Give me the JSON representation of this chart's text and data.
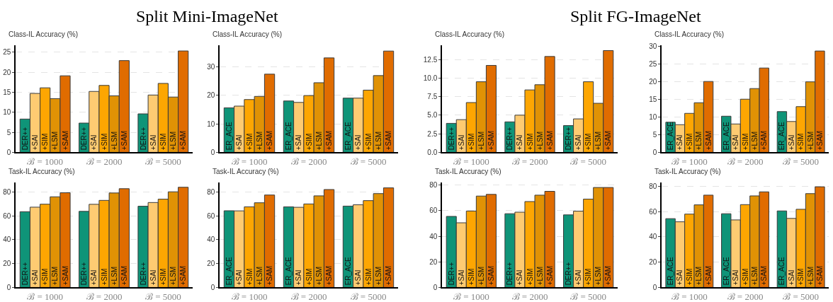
{
  "chart_data": [
    {
      "type": "bar",
      "title": "Split Mini-ImageNet",
      "ylabel": "Class-IL Accuracy (%)",
      "categories": [
        "ℬ = 1000",
        "ℬ = 2000",
        "ℬ = 5000"
      ],
      "ylim": [
        0,
        26.7
      ],
      "yticks": [
        0,
        5,
        10,
        15,
        20,
        25
      ],
      "grid": "y",
      "series": [
        {
          "name": "DER++",
          "color": "#0f9478",
          "values": [
            8.3,
            7.3,
            9.6
          ]
        },
        {
          "name": "+SAI",
          "color": "#fecb72",
          "values": [
            14.7,
            15.2,
            14.3
          ]
        },
        {
          "name": "+SIM",
          "color": "#fda602",
          "values": [
            16.1,
            16.7,
            17.2
          ]
        },
        {
          "name": "+LSM",
          "color": "#e09205",
          "values": [
            13.4,
            14.1,
            13.8
          ]
        },
        {
          "name": "+SAM",
          "color": "#e06c00",
          "values": [
            19.1,
            22.9,
            25.3
          ]
        }
      ]
    },
    {
      "type": "bar",
      "ylabel": "Class-IL Accuracy (%)",
      "categories": [
        "ℬ = 1000",
        "ℬ = 2000",
        "ℬ = 5000"
      ],
      "ylim": [
        0,
        37.5
      ],
      "yticks": [
        0,
        10,
        20,
        30
      ],
      "grid": "y",
      "series": [
        {
          "name": "ER_ACE",
          "color": "#0f9478",
          "values": [
            15.6,
            18.0,
            19.0
          ]
        },
        {
          "name": "+SAI",
          "color": "#fecb72",
          "values": [
            16.2,
            17.5,
            19.0
          ]
        },
        {
          "name": "+SIM",
          "color": "#fda602",
          "values": [
            18.5,
            19.9,
            21.8
          ]
        },
        {
          "name": "+LSM",
          "color": "#e09205",
          "values": [
            19.6,
            24.4,
            26.9
          ]
        },
        {
          "name": "+SAM",
          "color": "#e06c00",
          "values": [
            27.4,
            33.1,
            35.5
          ]
        }
      ]
    },
    {
      "type": "bar",
      "title": "Split FG-ImageNet",
      "ylabel": "Class-IL Accuracy (%)",
      "categories": [
        "ℬ = 1000",
        "ℬ = 2000",
        "ℬ = 5000"
      ],
      "ylim": [
        0,
        14.4
      ],
      "yticks": [
        {
          "value": 0,
          "label": "0.0"
        },
        {
          "value": 2.5,
          "label": "2.5"
        },
        {
          "value": 5,
          "label": "5.0"
        },
        {
          "value": 7.5,
          "label": "7.5"
        },
        {
          "value": 10,
          "label": "10.0"
        },
        {
          "value": 12.5,
          "label": "12.5"
        }
      ],
      "grid": "y",
      "series": [
        {
          "name": "DER++",
          "color": "#0f9478",
          "values": [
            3.9,
            4.1,
            3.6
          ]
        },
        {
          "name": "+SAI",
          "color": "#fecb72",
          "values": [
            4.4,
            5.0,
            4.5
          ]
        },
        {
          "name": "+SIM",
          "color": "#fda602",
          "values": [
            6.7,
            8.4,
            9.5
          ]
        },
        {
          "name": "+LSM",
          "color": "#e09205",
          "values": [
            9.5,
            9.1,
            6.6
          ]
        },
        {
          "name": "+SAM",
          "color": "#e06c00",
          "values": [
            11.7,
            12.9,
            13.7
          ]
        }
      ]
    },
    {
      "type": "bar",
      "ylabel": "Class-IL Accuracy (%)",
      "categories": [
        "ℬ = 1000",
        "ℬ = 2000",
        "ℬ = 5000"
      ],
      "ylim": [
        0,
        30.2
      ],
      "yticks": [
        0,
        5,
        10,
        15,
        20,
        25,
        30
      ],
      "grid": "y",
      "series": [
        {
          "name": "ER_ACE",
          "color": "#0f9478",
          "values": [
            8.5,
            10.2,
            11.5
          ]
        },
        {
          "name": "+SAI",
          "color": "#fecb72",
          "values": [
            7.8,
            8.0,
            8.7
          ]
        },
        {
          "name": "+SIM",
          "color": "#fda602",
          "values": [
            11.0,
            15.0,
            12.9
          ]
        },
        {
          "name": "+LSM",
          "color": "#e09205",
          "values": [
            14.0,
            18.0,
            19.9
          ]
        },
        {
          "name": "+SAM",
          "color": "#e06c00",
          "values": [
            20.0,
            23.8,
            28.6
          ]
        }
      ]
    },
    {
      "type": "bar",
      "ylabel": "Task-IL Accuracy (%)",
      "categories": [
        "ℬ = 1000",
        "ℬ = 2000",
        "ℬ = 5000"
      ],
      "ylim": [
        0,
        88
      ],
      "yticks": [
        0,
        20,
        40,
        60,
        80
      ],
      "grid": "y",
      "series": [
        {
          "name": "DER++",
          "color": "#0f9478",
          "values": [
            63.5,
            63.8,
            68.1
          ]
        },
        {
          "name": "+SAI",
          "color": "#fecb72",
          "values": [
            67.3,
            69.7,
            71.2
          ]
        },
        {
          "name": "+SIM",
          "color": "#fda602",
          "values": [
            69.8,
            73.0,
            74.0
          ]
        },
        {
          "name": "+LSM",
          "color": "#e09205",
          "values": [
            76.0,
            79.2,
            80.2
          ]
        },
        {
          "name": "+SAM",
          "color": "#e06c00",
          "values": [
            79.4,
            82.8,
            84.0
          ]
        }
      ]
    },
    {
      "type": "bar",
      "ylabel": "Task-IL Accuracy (%)",
      "categories": [
        "ℬ = 1000",
        "ℬ = 2000",
        "ℬ = 5000"
      ],
      "ylim": [
        0,
        88
      ],
      "yticks": [
        0,
        20,
        40,
        60,
        80
      ],
      "grid": "y",
      "series": [
        {
          "name": "ER_ACE",
          "color": "#0f9478",
          "values": [
            64.3,
            67.6,
            68.2
          ]
        },
        {
          "name": "+SAI",
          "color": "#fecb72",
          "values": [
            64.2,
            67.2,
            69.3
          ]
        },
        {
          "name": "+SIM",
          "color": "#fda602",
          "values": [
            67.6,
            70.0,
            72.8
          ]
        },
        {
          "name": "+LSM",
          "color": "#e09205",
          "values": [
            71.0,
            76.8,
            78.7
          ]
        },
        {
          "name": "+SAM",
          "color": "#e06c00",
          "values": [
            77.5,
            82.1,
            83.5
          ]
        }
      ]
    },
    {
      "type": "bar",
      "ylabel": "Task-IL Accuracy (%)",
      "categories": [
        "ℬ = 1000",
        "ℬ = 2000",
        "ℬ = 5000"
      ],
      "ylim": [
        0,
        82
      ],
      "yticks": [
        0,
        20,
        40,
        60,
        80
      ],
      "grid": "y",
      "series": [
        {
          "name": "DER++",
          "color": "#0f9478",
          "values": [
            55.5,
            57.6,
            56.7
          ]
        },
        {
          "name": "+SAI",
          "color": "#fecb72",
          "values": [
            50.5,
            58.8,
            59.6
          ]
        },
        {
          "name": "+SIM",
          "color": "#fda602",
          "values": [
            59.7,
            67.1,
            69.0
          ]
        },
        {
          "name": "+LSM",
          "color": "#e09205",
          "values": [
            71.4,
            72.1,
            78.1
          ]
        },
        {
          "name": "+SAM",
          "color": "#e06c00",
          "values": [
            72.7,
            75.1,
            78.1
          ]
        }
      ]
    },
    {
      "type": "bar",
      "ylabel": "Task-IL Accuracy (%)",
      "categories": [
        "ℬ = 1000",
        "ℬ = 2000",
        "ℬ = 5000"
      ],
      "ylim": [
        0,
        83
      ],
      "yticks": [
        0,
        20,
        40,
        60,
        80
      ],
      "grid": "y",
      "series": [
        {
          "name": "ER_ACE",
          "color": "#0f9478",
          "values": [
            54.4,
            58.3,
            60.5
          ]
        },
        {
          "name": "+SAI",
          "color": "#fecb72",
          "values": [
            51.9,
            53.4,
            54.6
          ]
        },
        {
          "name": "+SIM",
          "color": "#fda602",
          "values": [
            58.0,
            65.5,
            61.8
          ]
        },
        {
          "name": "+LSM",
          "color": "#e09205",
          "values": [
            65.3,
            72.4,
            74.2
          ]
        },
        {
          "name": "+SAM",
          "color": "#e06c00",
          "values": [
            73.0,
            75.6,
            79.6
          ]
        }
      ]
    }
  ]
}
